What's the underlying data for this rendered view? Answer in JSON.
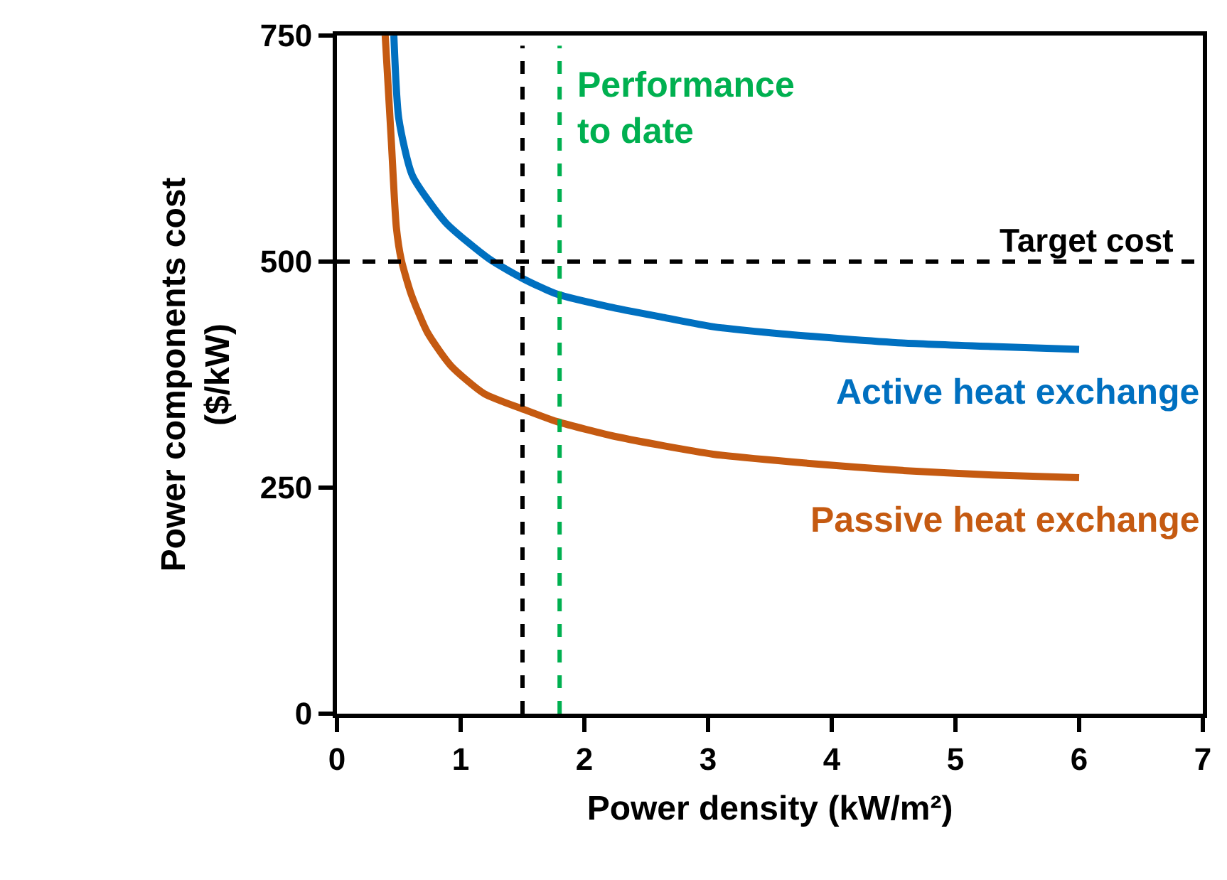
{
  "chart_data": {
    "type": "line",
    "xlabel": "Power density (kW/m²)",
    "ylabel": "Power components cost\n($/kW)",
    "xlim": [
      0,
      7
    ],
    "xticks": [
      0,
      1,
      2,
      3,
      4,
      5,
      6,
      7
    ],
    "ylim": [
      0,
      750
    ],
    "yticks": [
      0,
      250,
      500,
      750
    ],
    "legend": false,
    "marker": "none",
    "line_style": "solid",
    "series": [
      {
        "name": "Active heat exchange",
        "color": "#0070c0",
        "x": [
          0.46,
          0.5,
          0.61,
          0.88,
          1.23,
          1.52,
          1.78,
          2.2,
          2.65,
          3.04,
          3.6,
          4.57,
          5.3,
          6.0
        ],
        "values": [
          750,
          658,
          595,
          543,
          503,
          480,
          464,
          450,
          438,
          428,
          420,
          410,
          406,
          403
        ]
      },
      {
        "name": "Passive heat exchange",
        "color": "#c55a11",
        "x": [
          0.39,
          0.44,
          0.48,
          0.52,
          0.6,
          0.73,
          0.92,
          1.19,
          1.52,
          1.78,
          2.27,
          3.04,
          3.8,
          4.57,
          5.3,
          6.0
        ],
        "values": [
          750,
          632,
          538,
          502,
          464,
          422,
          385,
          354,
          336,
          323,
          306,
          287,
          277,
          269,
          264,
          261
        ]
      }
    ],
    "ref_lines": [
      {
        "axis": "y",
        "value": 500,
        "label": "Target cost",
        "color": "#000000",
        "line_style": "dashed"
      },
      {
        "axis": "x",
        "value": 1.5,
        "label": null,
        "color": "#000000",
        "line_style": "dashed"
      },
      {
        "axis": "x",
        "value": 1.8,
        "label": "Performance to date",
        "color": "#00b050",
        "line_style": "dashed"
      }
    ]
  }
}
